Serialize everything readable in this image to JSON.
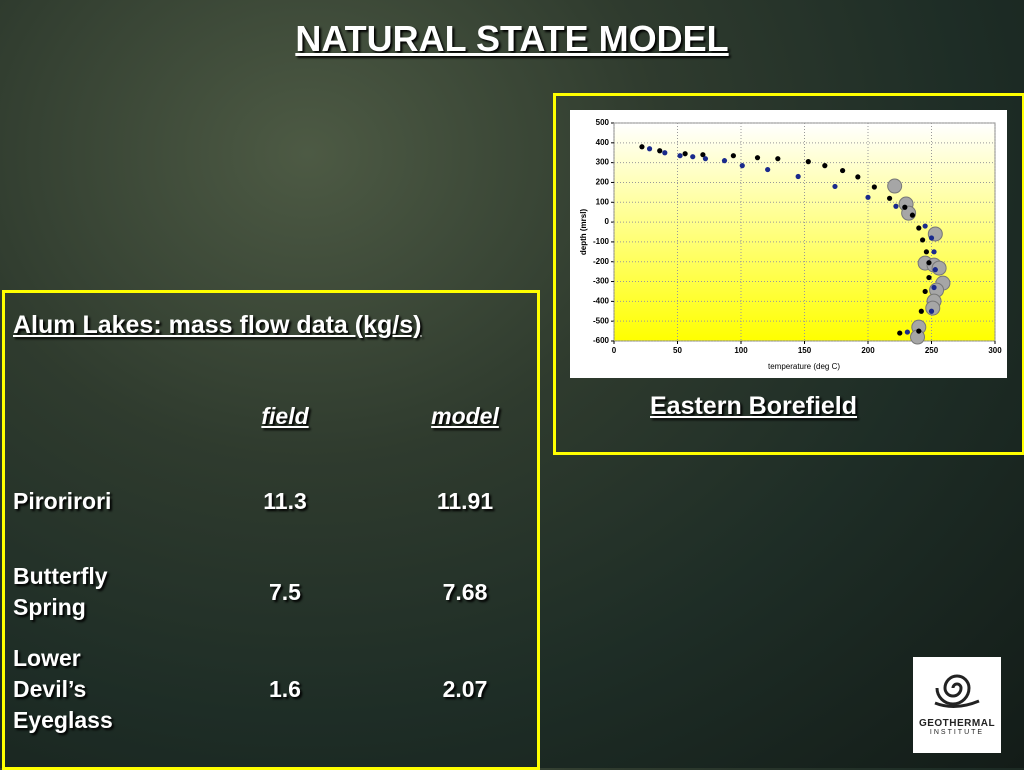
{
  "title": "NATURAL STATE MODEL",
  "table": {
    "heading": "Alum Lakes:  mass flow data (kg/s)",
    "columns": [
      "field",
      "model"
    ],
    "rows": [
      {
        "name": "Pirorirori",
        "field": 11.3,
        "model": 11.91
      },
      {
        "name": "Butterfly Spring",
        "field": 7.5,
        "model": 7.68
      },
      {
        "name": "Lower Devil’s Eyeglass",
        "field": 1.6,
        "model": 2.07
      }
    ]
  },
  "caption": "Eastern Borefield",
  "logo": {
    "line1": "GEOTHERMAL",
    "line2": "INSTITUTE"
  },
  "chart_data": {
    "type": "scatter",
    "x_label": "temperature (deg C)",
    "y_label": "depth (mrsl)",
    "xlim": [
      0,
      300
    ],
    "xticks": [
      0,
      50,
      100,
      150,
      200,
      250,
      300
    ],
    "ylim": [
      -600,
      500
    ],
    "yticks": [
      -600,
      -500,
      -400,
      -300,
      -200,
      -100,
      0,
      100,
      200,
      300,
      400,
      500
    ],
    "grid": true,
    "series": [
      {
        "color": "#000000",
        "size": "small",
        "x": [
          22,
          36,
          56,
          70,
          94,
          113,
          129,
          153,
          166,
          180,
          192,
          205,
          217,
          229,
          235,
          240,
          243,
          246,
          248,
          248,
          245,
          242,
          240,
          225
        ],
        "values": [
          380,
          360,
          345,
          340,
          335,
          325,
          320,
          305,
          285,
          260,
          228,
          177,
          120,
          75,
          35,
          -30,
          -90,
          -150,
          -205,
          -280,
          -350,
          -450,
          -550,
          -560
        ]
      },
      {
        "color": "#1a2a8c",
        "size": "small",
        "x": [
          28,
          40,
          52,
          62,
          72,
          87,
          101,
          121,
          145,
          174,
          200,
          222,
          245,
          250,
          252,
          253,
          252,
          250,
          231
        ],
        "values": [
          370,
          350,
          335,
          330,
          320,
          310,
          285,
          265,
          230,
          180,
          125,
          80,
          -20,
          -80,
          -150,
          -240,
          -330,
          -450,
          -555
        ]
      },
      {
        "color": "#a6a6a6",
        "size": "large",
        "x": [
          221,
          230,
          232,
          253,
          245,
          252,
          256,
          259,
          254,
          252,
          251,
          240,
          239
        ],
        "values": [
          182,
          91,
          45,
          -60,
          -207,
          -217,
          -232,
          -308,
          -343,
          -399,
          -434,
          -530,
          -580
        ]
      }
    ]
  }
}
